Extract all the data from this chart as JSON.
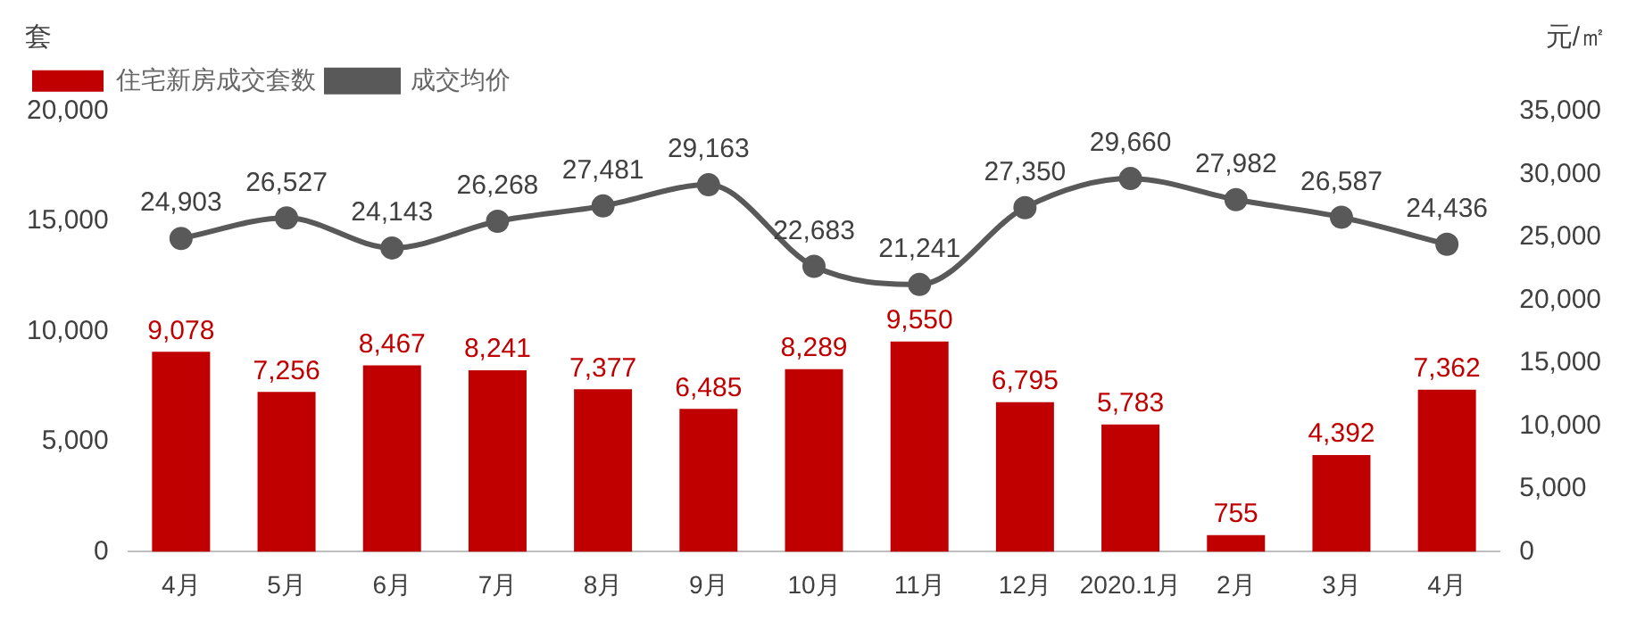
{
  "chart_data": {
    "type": "bar",
    "ylabel": "套",
    "y2label": "元/㎡",
    "categories": [
      "4月",
      "5月",
      "6月",
      "7月",
      "8月",
      "9月",
      "10月",
      "11月",
      "12月",
      "2020.1月",
      "2月",
      "3月",
      "4月"
    ],
    "series": [
      {
        "name": "住宅新房成交套数",
        "color": "#c00000",
        "values": [
          9078,
          7256,
          8467,
          8241,
          7377,
          6485,
          8289,
          9550,
          6795,
          5783,
          755,
          4392,
          7362
        ],
        "value_labels": [
          "9,078",
          "7,256",
          "8,467",
          "8,241",
          "7,377",
          "6,485",
          "8,289",
          "9,550",
          "6,795",
          "5,783",
          "755",
          "4,392",
          "7,362"
        ]
      },
      {
        "name": "成交均价",
        "type": "line",
        "axis": "y2",
        "color": "#595959",
        "marker": "circle",
        "values": [
          24903,
          26527,
          24143,
          26268,
          27481,
          29163,
          22683,
          21241,
          27350,
          29660,
          27982,
          26587,
          24436
        ],
        "value_labels": [
          "24,903",
          "26,527",
          "24,143",
          "26,268",
          "27,481",
          "29,163",
          "22,683",
          "21,241",
          "27,350",
          "29,660",
          "27,982",
          "26,587",
          "24,436"
        ]
      }
    ],
    "ylim": [
      0,
      20000
    ],
    "yticks": [
      0,
      {
        "value": 5000,
        "label": "5,000"
      },
      {
        "value": 10000,
        "label": "10,000"
      },
      {
        "value": 15000,
        "label": "15,000"
      },
      {
        "value": 20000,
        "label": "20,000"
      }
    ],
    "y2lim": [
      0,
      35000
    ],
    "y2ticks": [
      0,
      {
        "value": 5000,
        "label": "5,000"
      },
      {
        "value": 10000,
        "label": "10,000"
      },
      {
        "value": 15000,
        "label": "15,000"
      },
      {
        "value": 20000,
        "label": "20,000"
      },
      {
        "value": 25000,
        "label": "25,000"
      },
      {
        "value": 30000,
        "label": "30,000"
      },
      {
        "value": 35000,
        "label": "35,000"
      }
    ],
    "grid": false,
    "legend": "top left"
  }
}
